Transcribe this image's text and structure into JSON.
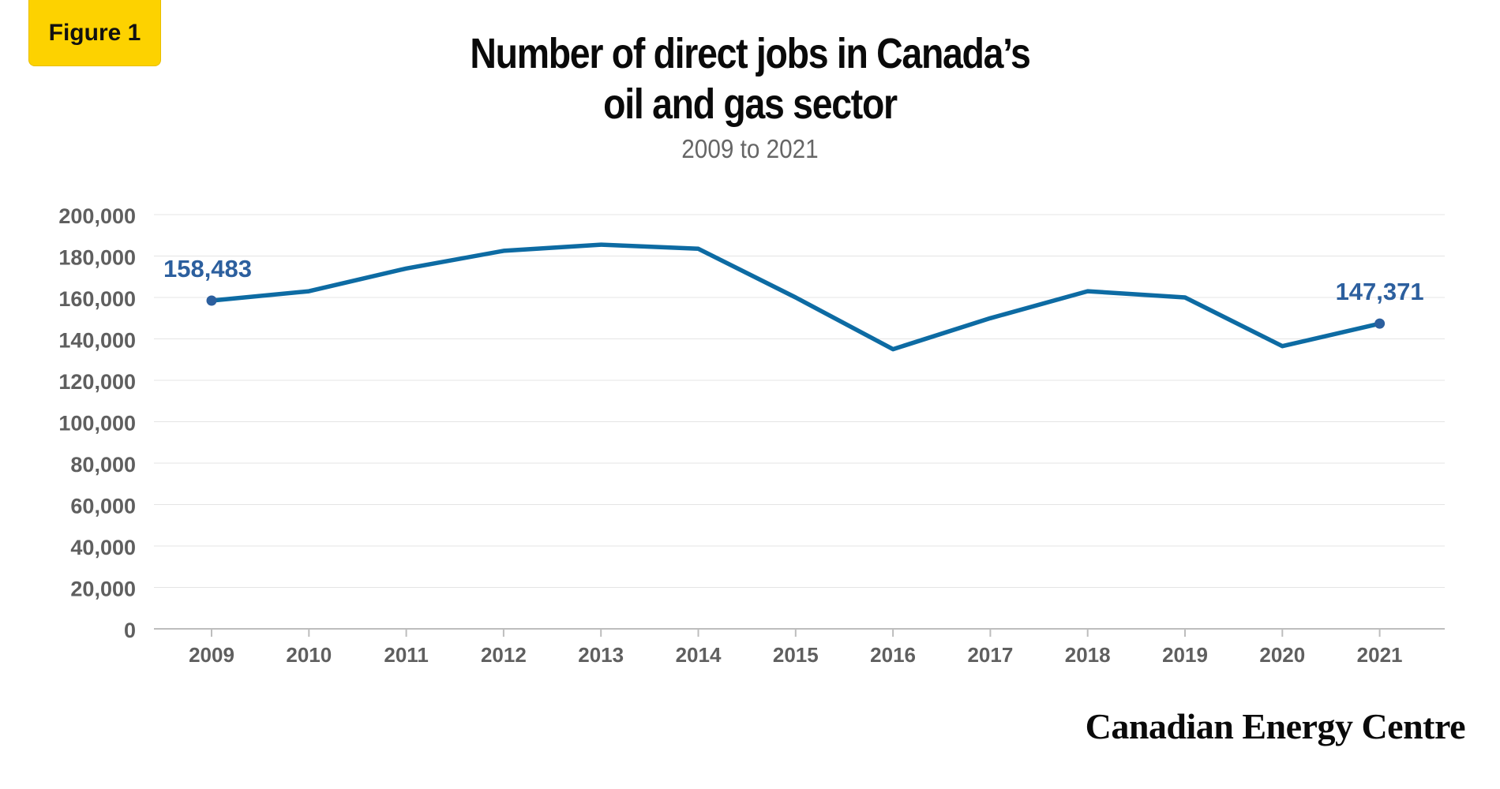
{
  "badge": {
    "label": "Figure 1"
  },
  "header": {
    "title_line1": "Number of direct jobs in Canada’s",
    "title_line2": "oil and gas sector",
    "subtitle": "2009 to 2021"
  },
  "brand": {
    "name": "Canadian Energy Centre"
  },
  "colors": {
    "line": "#0d6ba3",
    "label": "#2c5f9e",
    "accent": "#fdd200",
    "grid": "#e4e4e4",
    "tick": "#5f5f5f"
  },
  "chart_data": {
    "type": "line",
    "title": "Number of direct jobs in Canada’s oil and gas sector",
    "subtitle": "2009 to 2021",
    "xlabel": "",
    "ylabel": "",
    "x": [
      "2009",
      "2010",
      "2011",
      "2012",
      "2013",
      "2014",
      "2015",
      "2016",
      "2017",
      "2018",
      "2019",
      "2020",
      "2021"
    ],
    "series": [
      {
        "values": [
          158483,
          163000,
          174000,
          182500,
          185500,
          183500,
          160000,
          135000,
          150000,
          163000,
          160000,
          136500,
          147371
        ]
      }
    ],
    "ylim": [
      0,
      200000
    ],
    "yticks": [
      0,
      20000,
      40000,
      60000,
      80000,
      100000,
      120000,
      140000,
      160000,
      180000,
      200000
    ],
    "ytick_labels": [
      "0",
      "20,000",
      "40,000",
      "60,000",
      "80,000",
      "100,000",
      "120,000",
      "140,000",
      "160,000",
      "180,000",
      "200,000"
    ],
    "annotations": [
      {
        "x": "2009",
        "text": "158,483"
      },
      {
        "x": "2021",
        "text": "147,371"
      }
    ],
    "grid": true,
    "legend": "none"
  }
}
